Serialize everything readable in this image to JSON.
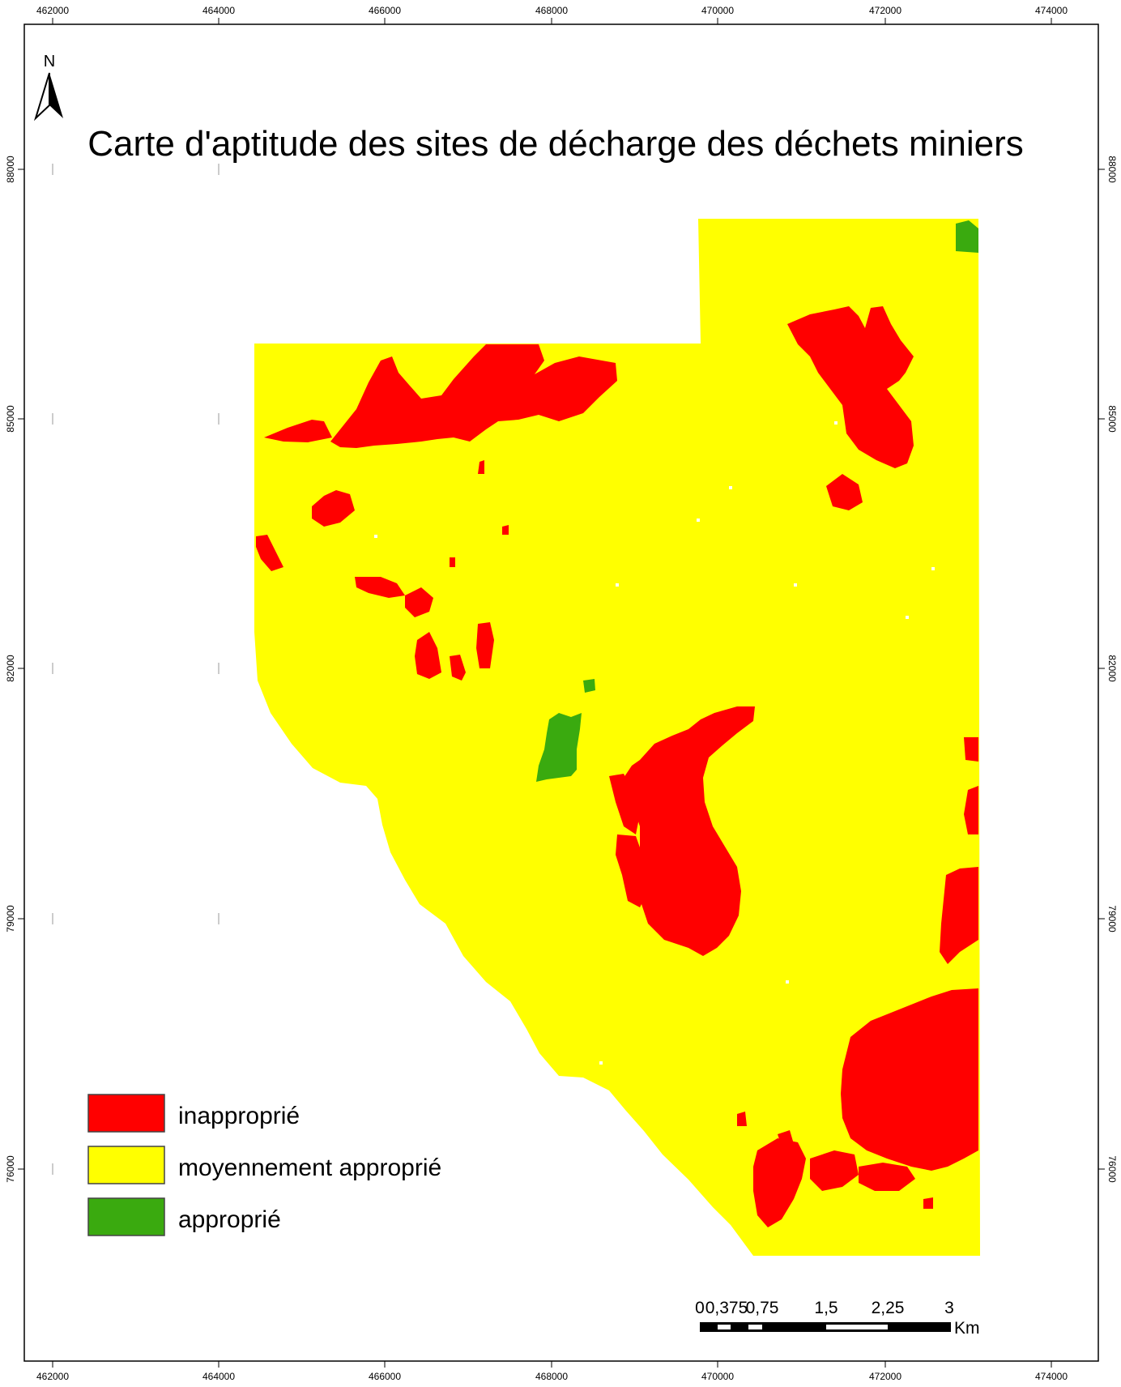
{
  "title": "Carte d'aptitude des sites de décharge des déchets miniers",
  "north_label": "N",
  "colors": {
    "inapproprie": "#ff0000",
    "moyennement": "#ffff00",
    "approprie": "#3aaa0f",
    "frame": "#000000"
  },
  "legend": [
    {
      "label": "inapproprié",
      "color": "#ff0000"
    },
    {
      "label": "moyennement approprié",
      "color": "#ffff00"
    },
    {
      "label": "approprié",
      "color": "#3aaa0f"
    }
  ],
  "axes": {
    "x_ticks": [
      "462000",
      "464000",
      "466000",
      "468000",
      "470000",
      "472000",
      "474000"
    ],
    "y_ticks": [
      "88000",
      "85000",
      "82000",
      "79000",
      "76000"
    ]
  },
  "scale_bar": {
    "labels": [
      "0",
      "0,375",
      "0,75",
      "1,5",
      "2,25",
      "3"
    ],
    "unit": "Km"
  }
}
